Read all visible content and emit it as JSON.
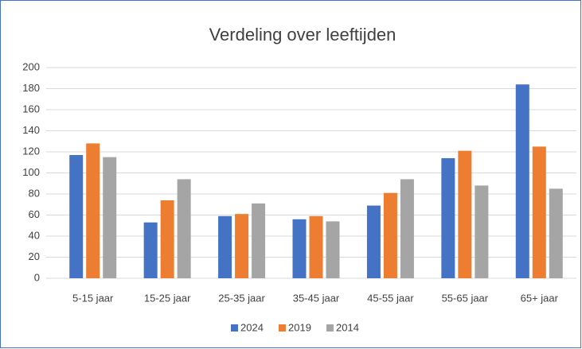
{
  "chart_data": {
    "type": "bar",
    "title": "Verdeling over leeftijden",
    "categories": [
      "5-15 jaar",
      "15-25 jaar",
      "25-35 jaar",
      "35-45 jaar",
      "45-55 jaar",
      "55-65 jaar",
      "65+ jaar"
    ],
    "series": [
      {
        "name": "2024",
        "color": "#4472c4",
        "values": [
          117,
          53,
          59,
          56,
          69,
          114,
          184
        ]
      },
      {
        "name": "2019",
        "color": "#ed7d31",
        "values": [
          128,
          74,
          61,
          59,
          81,
          121,
          125
        ]
      },
      {
        "name": "2014",
        "color": "#a5a5a5",
        "values": [
          115,
          94,
          71,
          54,
          94,
          88,
          85
        ]
      }
    ],
    "ylim": [
      0,
      200
    ],
    "yticks": [
      0,
      20,
      40,
      60,
      80,
      100,
      120,
      140,
      160,
      180,
      200
    ],
    "grid": true,
    "legend": "bottom"
  }
}
